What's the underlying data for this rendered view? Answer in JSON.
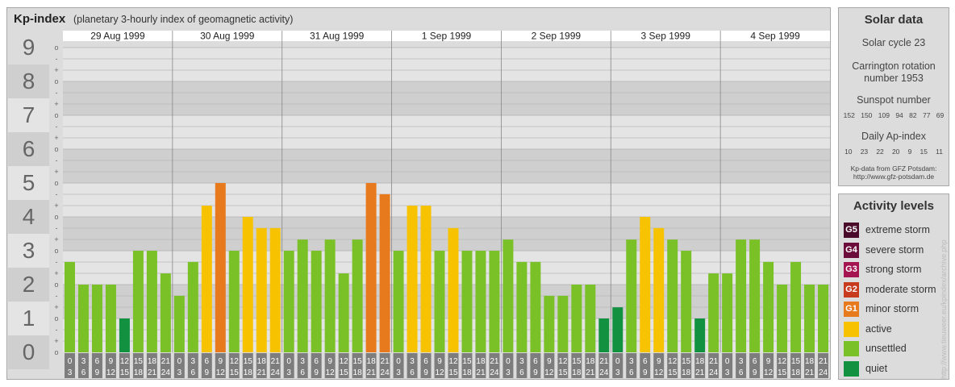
{
  "header": {
    "title": "Kp-index",
    "subtitle": "(planetary 3-hourly index of geomagnetic activity)"
  },
  "chart_data": {
    "type": "bar",
    "title": "Kp-index",
    "subtitle": "(planetary 3-hourly index of geomagnetic activity)",
    "ylim": [
      0,
      9
    ],
    "y_ticks": [
      "0",
      "1",
      "2",
      "3",
      "4",
      "5",
      "6",
      "7",
      "8",
      "9"
    ],
    "y_minor_ticks": [
      "o",
      "+",
      "-"
    ],
    "days": [
      "29 Aug 1999",
      "30 Aug 1999",
      "31 Aug 1999",
      "1 Sep 1999",
      "2 Sep 1999",
      "3 Sep 1999",
      "4 Sep 1999"
    ],
    "intervals": [
      [
        "0",
        "3"
      ],
      [
        "3",
        "6"
      ],
      [
        "6",
        "9"
      ],
      [
        "9",
        "12"
      ],
      [
        "12",
        "15"
      ],
      [
        "15",
        "18"
      ],
      [
        "18",
        "21"
      ],
      [
        "21",
        "24"
      ]
    ],
    "values": [
      [
        2.67,
        2.0,
        2.0,
        2.0,
        1.0,
        3.0,
        3.0,
        2.33
      ],
      [
        1.67,
        2.67,
        4.33,
        5.0,
        3.0,
        4.0,
        3.67,
        3.67
      ],
      [
        3.0,
        3.33,
        3.0,
        3.33,
        2.33,
        3.33,
        5.0,
        4.67
      ],
      [
        3.0,
        4.33,
        4.33,
        3.0,
        3.67,
        3.0,
        3.0,
        3.0
      ],
      [
        3.33,
        2.67,
        2.67,
        1.67,
        1.67,
        2.0,
        2.0,
        1.0
      ],
      [
        1.33,
        3.33,
        4.0,
        3.67,
        3.33,
        3.0,
        1.0,
        2.33
      ],
      [
        2.33,
        3.33,
        3.33,
        2.67,
        2.0,
        2.67,
        2.0,
        2.0
      ]
    ],
    "grid": true
  },
  "solar": {
    "title": "Solar data",
    "cycle": "Solar cycle 23",
    "carrington_line1": "Carrington rotation",
    "carrington_line2": "number 1953",
    "sunspot_label": "Sunspot number",
    "sunspot_values": [
      "152",
      "150",
      "109",
      "94",
      "82",
      "77",
      "69"
    ],
    "ap_label": "Daily Ap-index",
    "ap_values": [
      "10",
      "23",
      "22",
      "20",
      "9",
      "15",
      "11"
    ],
    "credit_line1": "Kp-data from GFZ Potsdam:",
    "credit_line2": "http://www.gfz-potsdam.de"
  },
  "levels": {
    "title": "Activity levels",
    "items": [
      {
        "code": "G5",
        "label": "extreme storm",
        "color": "#4a0b2b"
      },
      {
        "code": "G4",
        "label": "severe storm",
        "color": "#6b0c3a"
      },
      {
        "code": "G3",
        "label": "strong storm",
        "color": "#a31450"
      },
      {
        "code": "G2",
        "label": "moderate storm",
        "color": "#c83a1e"
      },
      {
        "code": "G1",
        "label": "minor storm",
        "color": "#e67a1c"
      },
      {
        "code": "",
        "label": "active",
        "color": "#f7c300"
      },
      {
        "code": "",
        "label": "unsettled",
        "color": "#7ac128"
      },
      {
        "code": "",
        "label": "quiet",
        "color": "#129141"
      }
    ]
  },
  "watermark": "http://www.tieuweer.eu/kpindex/archive.php"
}
